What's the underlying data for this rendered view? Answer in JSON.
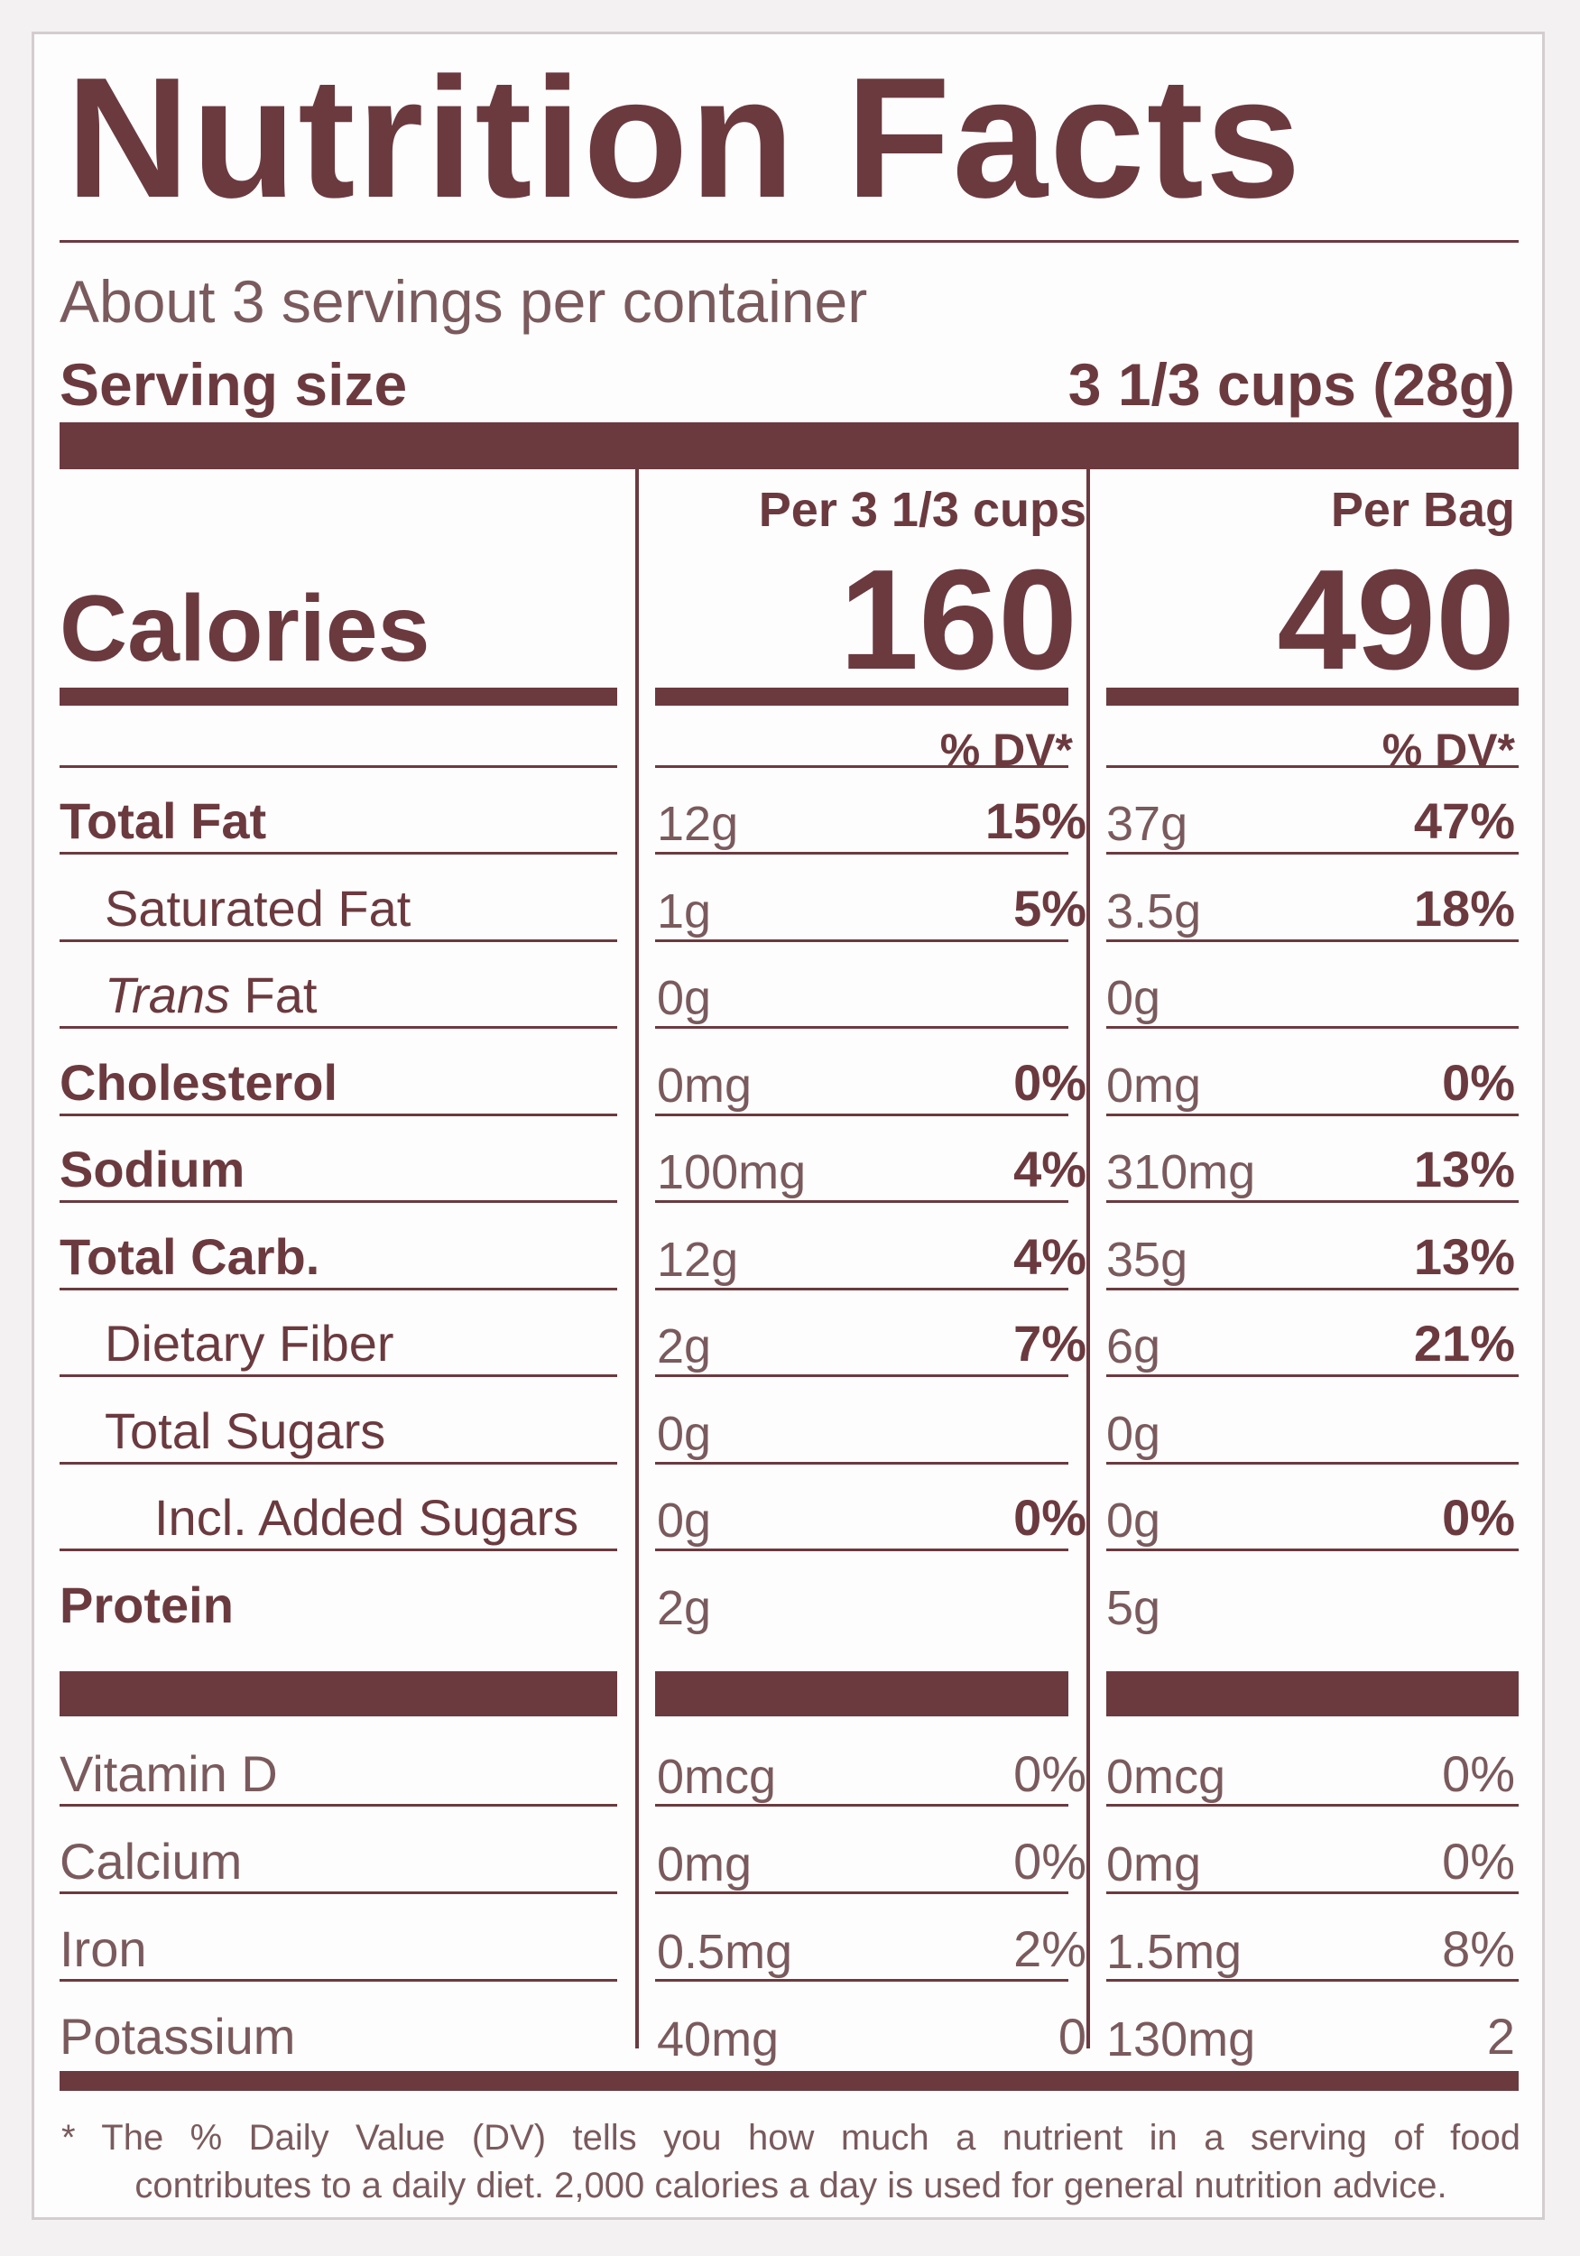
{
  "title": "Nutrition Facts",
  "servings_per_container": "About 3 servings per container",
  "serving_size_label": "Serving size",
  "serving_size_value": "3 1/3 cups (28g)",
  "columns": [
    {
      "header": "Per 3 1/3 cups",
      "calories": "160",
      "dv_header": "% DV*"
    },
    {
      "header": "Per Bag",
      "calories": "490",
      "dv_header": "% DV*"
    }
  ],
  "calories_label": "Calories",
  "nutrients": [
    {
      "label": "Total Fat",
      "bold": true,
      "v1": "12g",
      "d1": "15%",
      "v2": "37g",
      "d2": "47%"
    },
    {
      "label": "Saturated Fat",
      "v1": "1g",
      "d1": "5%",
      "v2": "3.5g",
      "d2": "18%"
    },
    {
      "label_italic": "Trans",
      "label": " Fat",
      "v1": "0g",
      "d1": "",
      "v2": "0g",
      "d2": ""
    },
    {
      "label": "Cholesterol",
      "bold": true,
      "v1": "0mg",
      "d1": "0%",
      "v2": "0mg",
      "d2": "0%"
    },
    {
      "label": "Sodium",
      "bold": true,
      "v1": "100mg",
      "d1": "4%",
      "v2": "310mg",
      "d2": "13%"
    },
    {
      "label": "Total Carb.",
      "bold": true,
      "v1": "12g",
      "d1": "4%",
      "v2": "35g",
      "d2": "13%"
    },
    {
      "label": "Dietary Fiber",
      "v1": "2g",
      "d1": "7%",
      "v2": "6g",
      "d2": "21%"
    },
    {
      "label": "Total Sugars",
      "v1": "0g",
      "d1": "",
      "v2": "0g",
      "d2": ""
    },
    {
      "label": "Incl. Added Sugars",
      "v1": "0g",
      "d1": "0%",
      "v2": "0g",
      "d2": "0%"
    },
    {
      "label": "Protein",
      "bold": true,
      "v1": "2g",
      "d1": "",
      "v2": "5g",
      "d2": ""
    }
  ],
  "vitamins": [
    {
      "label": "Vitamin D",
      "v1": "0mcg",
      "d1": "0%",
      "v2": "0mcg",
      "d2": "0%"
    },
    {
      "label": "Calcium",
      "v1": "0mg",
      "d1": "0%",
      "v2": "0mg",
      "d2": "0%"
    },
    {
      "label": "Iron",
      "v1": "0.5mg",
      "d1": "2%",
      "v2": "1.5mg",
      "d2": "8%"
    },
    {
      "label": "Potassium",
      "v1": "40mg",
      "d1": "0",
      "v2": "130mg",
      "d2": "2"
    }
  ],
  "footnote_line1": "* The % Daily Value (DV) tells you how much a nutrient in a serving of food",
  "footnote_line2": "contributes to a daily diet. 2,000 calories a day is used for general nutrition advice.",
  "colors": {
    "ink": "#6b3a3f",
    "text_light": "#7a5a5d",
    "background": "#fdfdfd"
  }
}
